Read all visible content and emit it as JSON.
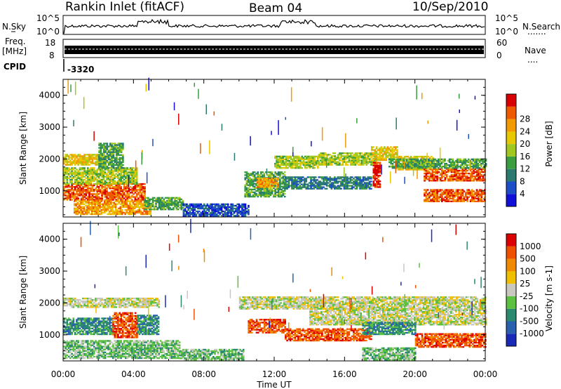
{
  "header": {
    "station": "Rankin Inlet (fitACF)",
    "beam": "Beam 04",
    "date": "10/Sep/2010"
  },
  "nsky": {
    "label": "N.Sky",
    "ytick_top": "10^5",
    "ytick_bottom": "10^0",
    "right_label": "N.Search",
    "right_top": "10^5",
    "right_bottom": "10^0",
    "right_marker": "......."
  },
  "freq": {
    "label_top": "Freq.",
    "label_unit": "[MHz]",
    "ytick_top": "18",
    "ytick_bottom": "8",
    "right_label": "Nave",
    "right_top": "60",
    "right_bottom": "0",
    "right_marker": "...."
  },
  "cpid": {
    "label": "CPID",
    "value": "-3320"
  },
  "chart_data": [
    {
      "type": "heatmap",
      "name": "power",
      "xlim": [
        0,
        24
      ],
      "ylim": [
        180,
        4500
      ],
      "ylabel": "Slant Range [km]",
      "yticks": [
        1000,
        2000,
        3000,
        4000
      ],
      "colorbar": {
        "label": "Power [dB]",
        "ticks": [
          "4",
          "8",
          "12",
          "16",
          "20",
          "24",
          "28"
        ],
        "colors": [
          "#1010d8",
          "#1c4ec8",
          "#2a7a70",
          "#3a9e40",
          "#a0c820",
          "#e8c800",
          "#f39a00",
          "#ee5a00",
          "#d80000"
        ]
      },
      "bands": [
        {
          "t0": 0.0,
          "t1": 4.6,
          "r0": 700,
          "r1": 1200,
          "level": 7
        },
        {
          "t0": 0.0,
          "t1": 4.2,
          "r0": 1200,
          "r1": 1700,
          "level": 4
        },
        {
          "t0": 0.0,
          "t1": 2.4,
          "r0": 1800,
          "r1": 2150,
          "level": 5
        },
        {
          "t0": 2.0,
          "t1": 3.4,
          "r0": 1700,
          "r1": 2500,
          "level": 3
        },
        {
          "t0": 0.6,
          "t1": 5.0,
          "r0": 250,
          "r1": 700,
          "level": 6
        },
        {
          "t0": 4.6,
          "t1": 6.8,
          "r0": 400,
          "r1": 800,
          "level": 3
        },
        {
          "t0": 6.8,
          "t1": 10.5,
          "r0": 200,
          "r1": 600,
          "level": 1
        },
        {
          "t0": 10.3,
          "t1": 12.6,
          "r0": 800,
          "r1": 1600,
          "level": 3
        },
        {
          "t0": 11.0,
          "t1": 12.2,
          "r0": 1100,
          "r1": 1400,
          "level": 6
        },
        {
          "t0": 12.6,
          "t1": 17.5,
          "r0": 1050,
          "r1": 1450,
          "level": 2
        },
        {
          "t0": 12.0,
          "t1": 14.5,
          "r0": 1700,
          "r1": 2100,
          "level": 4
        },
        {
          "t0": 14.5,
          "t1": 17.8,
          "r0": 1800,
          "r1": 2200,
          "level": 4
        },
        {
          "t0": 17.5,
          "t1": 19.0,
          "r0": 1950,
          "r1": 2400,
          "level": 5
        },
        {
          "t0": 19.0,
          "t1": 21.0,
          "r0": 1650,
          "r1": 2100,
          "level": 5
        },
        {
          "t0": 20.5,
          "t1": 24.0,
          "r0": 1300,
          "r1": 1700,
          "level": 7
        },
        {
          "t0": 20.5,
          "t1": 24.0,
          "r0": 650,
          "r1": 1050,
          "level": 7
        },
        {
          "t0": 18.5,
          "t1": 24.0,
          "r0": 1700,
          "r1": 2000,
          "level": 3
        },
        {
          "t0": 17.6,
          "t1": 18.0,
          "r0": 1100,
          "r1": 1900,
          "level": 8
        }
      ]
    },
    {
      "type": "heatmap",
      "name": "velocity",
      "xlim": [
        0,
        24
      ],
      "ylim": [
        180,
        4500
      ],
      "xlabel": "Time UT",
      "ylabel": "Slant Range [km]",
      "xticks": [
        "00:00",
        "04:00",
        "08:00",
        "12:00",
        "16:00",
        "20:00",
        "00:00"
      ],
      "yticks": [
        1000,
        2000,
        3000,
        4000
      ],
      "colorbar": {
        "label": "Velocity [m s-1]",
        "ticks": [
          "1000",
          "500",
          "100",
          "25",
          "-25",
          "-100",
          "-500",
          "-1000"
        ],
        "colors": [
          "#1a2ab8",
          "#2a60b0",
          "#2a8a70",
          "#5cc040",
          "#c8c8c0",
          "#f0c000",
          "#f08a00",
          "#ee5000",
          "#dd0000"
        ]
      },
      "bands": [
        {
          "t0": 0.0,
          "t1": 5.4,
          "r0": 1850,
          "r1": 2150,
          "level": 4
        },
        {
          "t0": 0.0,
          "t1": 2.8,
          "r0": 1000,
          "r1": 1500,
          "level": 2
        },
        {
          "t0": 2.8,
          "t1": 4.2,
          "r0": 900,
          "r1": 1700,
          "level": 7
        },
        {
          "t0": 4.2,
          "t1": 5.4,
          "r0": 1000,
          "r1": 1600,
          "level": 2
        },
        {
          "t0": 0.0,
          "t1": 6.6,
          "r0": 250,
          "r1": 800,
          "level": 3
        },
        {
          "t0": 6.6,
          "t1": 10.2,
          "r0": 200,
          "r1": 550,
          "level": 3
        },
        {
          "t0": 10.5,
          "t1": 12.6,
          "r0": 1050,
          "r1": 1500,
          "level": 7
        },
        {
          "t0": 12.6,
          "t1": 17.5,
          "r0": 800,
          "r1": 1200,
          "level": 7
        },
        {
          "t0": 10.0,
          "t1": 24.0,
          "r0": 1800,
          "r1": 2200,
          "level": 4
        },
        {
          "t0": 14.0,
          "t1": 24.0,
          "r0": 1300,
          "r1": 1800,
          "level": 4
        },
        {
          "t0": 17.0,
          "t1": 20.0,
          "r0": 1000,
          "r1": 1400,
          "level": 2
        },
        {
          "t0": 20.0,
          "t1": 24.0,
          "r0": 600,
          "r1": 1050,
          "level": 7
        },
        {
          "t0": 17.0,
          "t1": 20.0,
          "r0": 200,
          "r1": 600,
          "level": 3
        }
      ]
    }
  ]
}
